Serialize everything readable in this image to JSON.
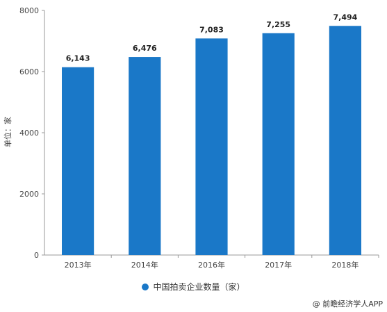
{
  "chart_data": {
    "type": "bar",
    "categories": [
      "2013年",
      "2014年",
      "2016年",
      "2017年",
      "2018年"
    ],
    "series": [
      {
        "name": "中国拍卖企业数量（家）",
        "values": [
          6143,
          6476,
          7083,
          7255,
          7494
        ]
      }
    ],
    "data_labels": [
      "6,143",
      "6,476",
      "7,083",
      "7,255",
      "7,494"
    ],
    "ylabel": "单位：家",
    "xlabel": "",
    "ylim": [
      0,
      8000
    ],
    "yticks": [
      0,
      2000,
      4000,
      6000,
      8000
    ],
    "grid": false,
    "legend_position": "bottom",
    "bar_color": "#1a78c8"
  },
  "legend": {
    "label": "中国拍卖企业数量（家）"
  },
  "source": {
    "text": "@ 前瞻经济学人APP"
  }
}
